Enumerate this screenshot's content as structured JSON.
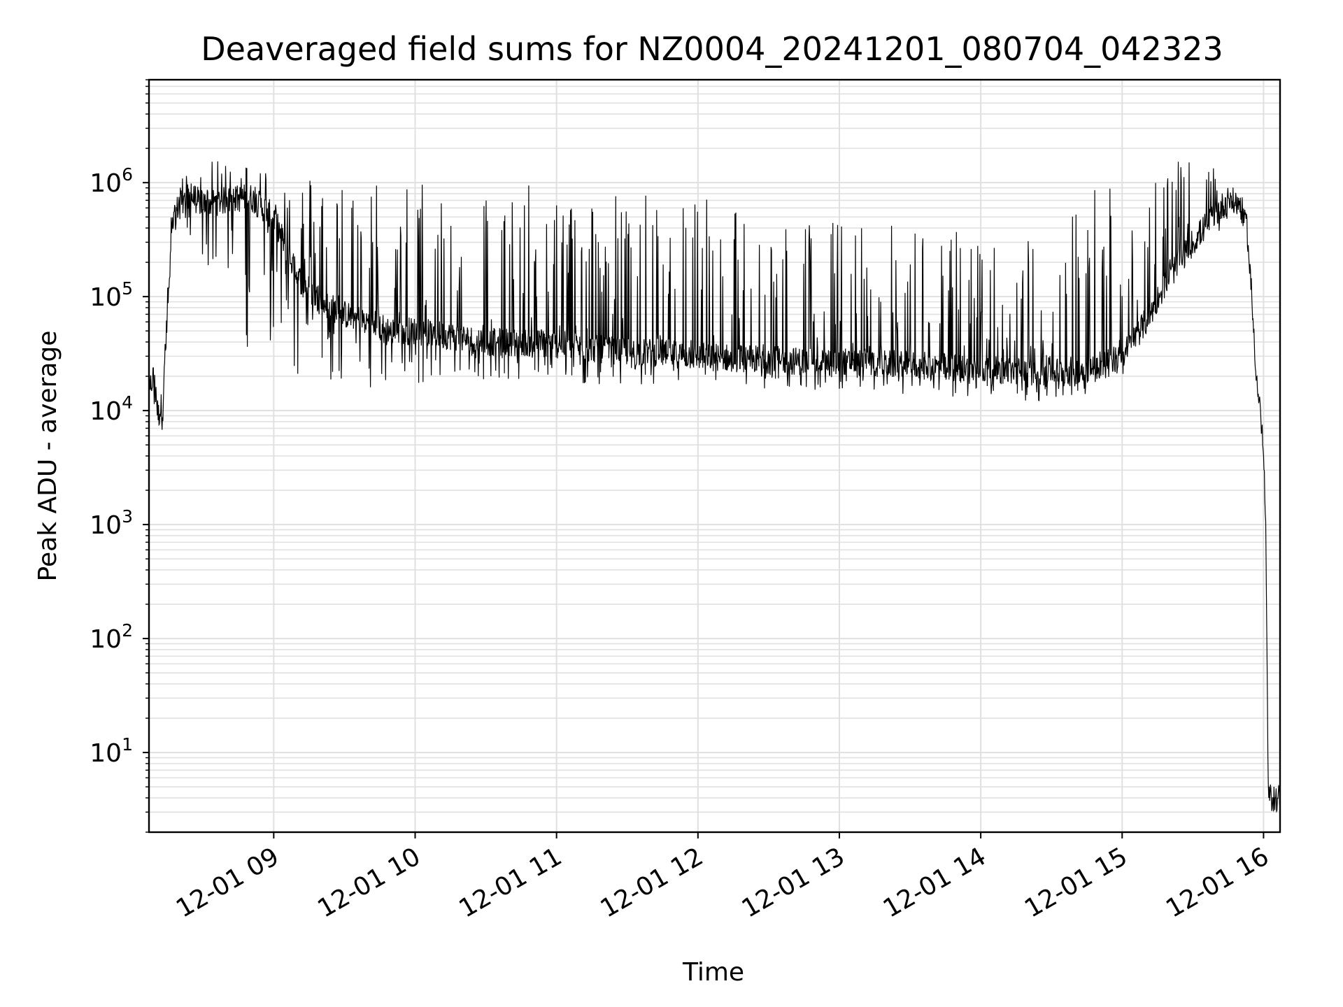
{
  "chart_data": {
    "type": "line",
    "title": "Deaveraged field sums for NZ0004_20241201_080704_042323",
    "xlabel": "Time",
    "ylabel": "Peak ADU - average",
    "yscale": "log",
    "ylim": [
      2,
      8000000
    ],
    "xlim": [
      "2024-12-01 08:07:04",
      "2024-12-01 16:07:00"
    ],
    "x_ticks": [
      "12-01 09",
      "12-01 10",
      "12-01 11",
      "12-01 12",
      "12-01 13",
      "12-01 14",
      "12-01 15",
      "12-01 16"
    ],
    "y_ticks": [
      {
        "base": "10",
        "exp": "1",
        "value": 10
      },
      {
        "base": "10",
        "exp": "2",
        "value": 100
      },
      {
        "base": "10",
        "exp": "3",
        "value": 1000
      },
      {
        "base": "10",
        "exp": "4",
        "value": 10000
      },
      {
        "base": "10",
        "exp": "5",
        "value": 100000
      },
      {
        "base": "10",
        "exp": "6",
        "value": 1000000
      }
    ],
    "grid": true,
    "line_color": "#000000",
    "grid_color": "#e0e0e0",
    "series": [
      {
        "x": [
          "08:07",
          "08:09",
          "08:11",
          "08:13",
          "08:15",
          "08:17",
          "08:20",
          "08:25",
          "08:30",
          "08:40",
          "08:50",
          "09:00",
          "09:10",
          "09:20",
          "09:30",
          "09:40",
          "09:50",
          "10:00",
          "10:15",
          "10:30",
          "10:45",
          "11:00",
          "11:15",
          "11:30",
          "11:45",
          "12:00",
          "12:15",
          "12:30",
          "12:45",
          "13:00",
          "13:15",
          "13:30",
          "13:45",
          "14:00",
          "14:15",
          "14:30",
          "14:45",
          "15:00",
          "15:10",
          "15:20",
          "15:30",
          "15:40",
          "15:45",
          "15:50",
          "15:53",
          "15:55",
          "15:57",
          "15:59",
          "16:00",
          "16:01",
          "16:02",
          "16:07"
        ],
        "baseline": [
          15000,
          20000,
          9000,
          12000,
          80000,
          400000,
          700000,
          750000,
          650000,
          700000,
          750000,
          500000,
          150000,
          90000,
          70000,
          60000,
          50000,
          50000,
          45000,
          40000,
          40000,
          38000,
          35000,
          33000,
          32000,
          30000,
          29000,
          28000,
          27000,
          27000,
          26000,
          25000,
          24000,
          23000,
          22000,
          22000,
          23000,
          30000,
          60000,
          150000,
          300000,
          550000,
          700000,
          650000,
          400000,
          100000,
          20000,
          8000,
          4000,
          800,
          4,
          4
        ],
        "spike_max": [
          25000,
          30000,
          20000,
          20000,
          150000,
          800000,
          1100000,
          1300000,
          1500000,
          1600000,
          1500000,
          1400000,
          1300000,
          1250000,
          1200000,
          1200000,
          1150000,
          1150000,
          1100000,
          1050000,
          1000000,
          950000,
          900000,
          850000,
          800000,
          1100000,
          700000,
          600000,
          500000,
          500000,
          450000,
          450000,
          400000,
          400000,
          350000,
          300000,
          1200000,
          1300000,
          1400000,
          1500000,
          1600000,
          1300000,
          900000,
          800000,
          500000,
          100000,
          20000,
          8000,
          4000,
          800,
          4,
          4
        ],
        "spike_min": [
          8000,
          10000,
          4000,
          7000,
          60000,
          300000,
          400000,
          300000,
          200000,
          120000,
          30000,
          25000,
          20000,
          18000,
          17000,
          16000,
          16000,
          17000,
          18000,
          18000,
          17000,
          17000,
          16000,
          16000,
          16000,
          16000,
          15000,
          15000,
          15000,
          14000,
          14000,
          14000,
          13000,
          12000,
          12000,
          12000,
          14000,
          20000,
          50000,
          120000,
          250000,
          300000,
          500000,
          500000,
          300000,
          80000,
          15000,
          5000,
          3000,
          700,
          4,
          4
        ]
      }
    ]
  }
}
